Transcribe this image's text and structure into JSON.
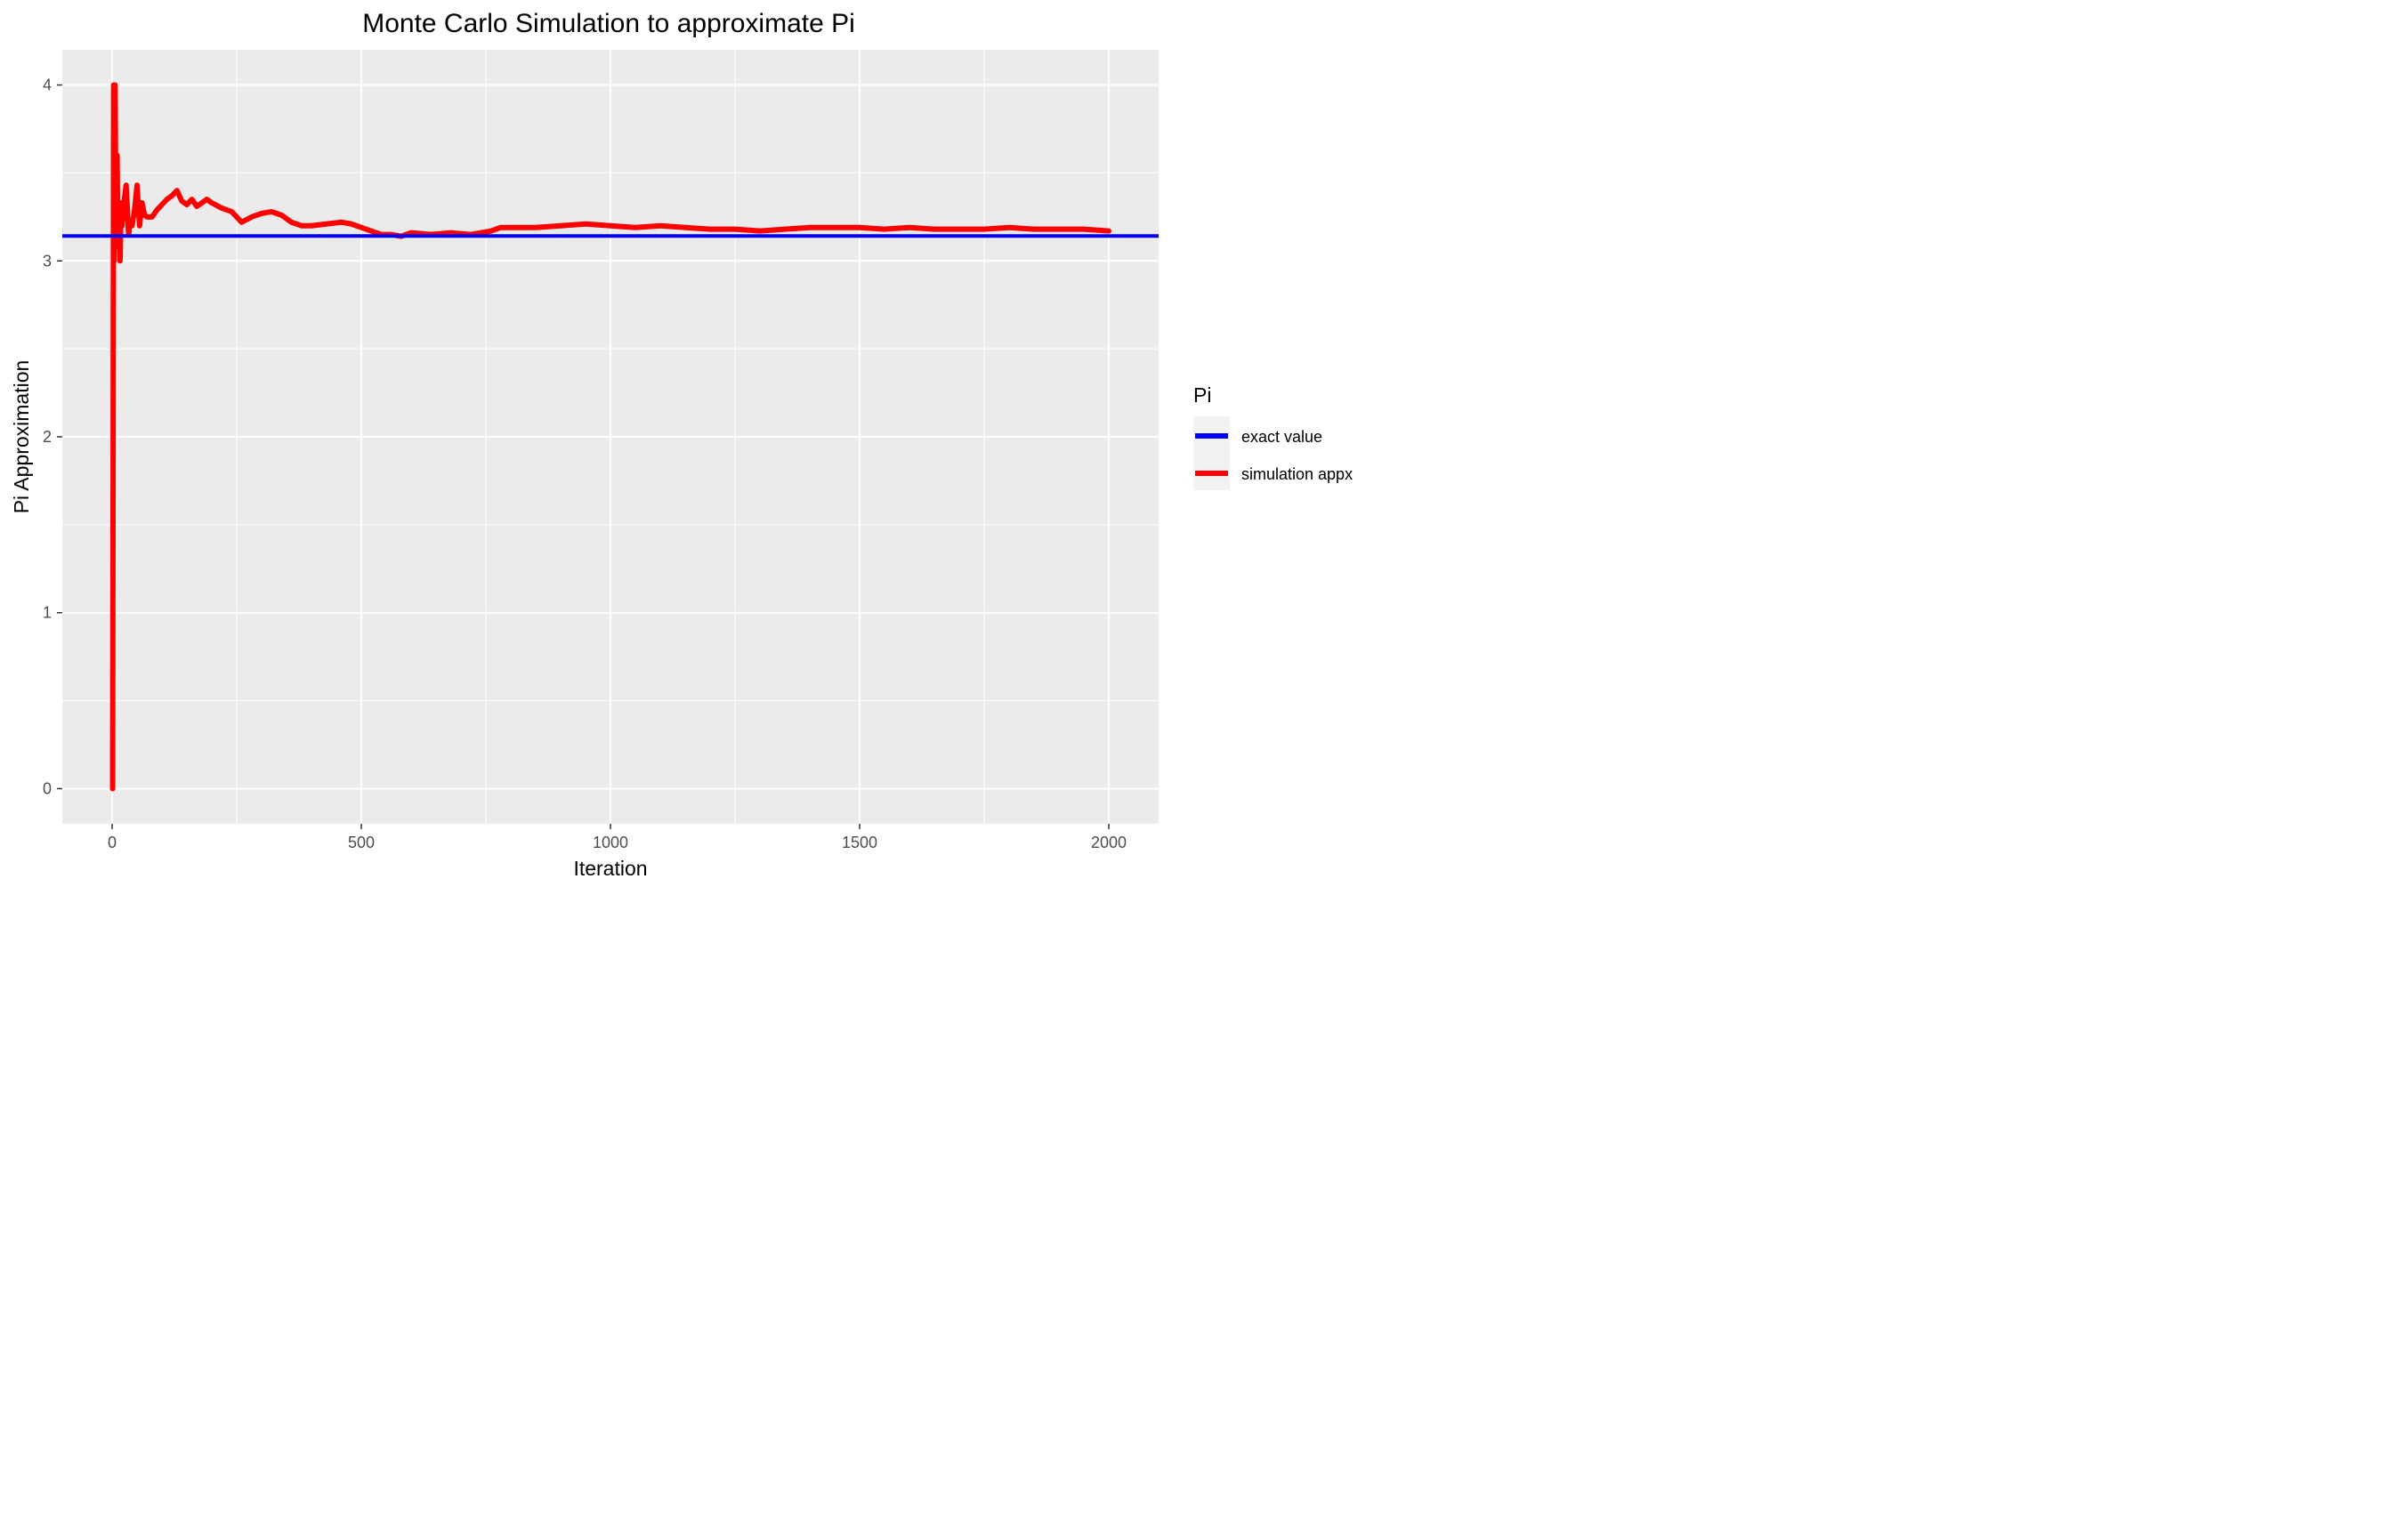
{
  "chart_data": {
    "type": "line",
    "title": "Monte Carlo Simulation to approximate Pi",
    "xlabel": "Iteration",
    "ylabel": "Pi Approximation",
    "xlim": [
      -100,
      2100
    ],
    "ylim": [
      -0.2,
      4.2
    ],
    "x_ticks": [
      0,
      500,
      1000,
      1500,
      2000
    ],
    "x_tick_labels": [
      "0",
      "500",
      "1000",
      "1500",
      "2000"
    ],
    "y_ticks": [
      0,
      1,
      2,
      3,
      4
    ],
    "y_tick_labels": [
      "0",
      "1",
      "2",
      "3",
      "4"
    ],
    "grid": true,
    "legend": {
      "title": "Pi",
      "position": "right"
    },
    "series": [
      {
        "name": "exact value",
        "color": "#0000FF",
        "kind": "hline",
        "y": 3.14159
      },
      {
        "name": "simulation appx",
        "color": "#FF0000",
        "kind": "line",
        "x": [
          1,
          2,
          3,
          4,
          5,
          6,
          7,
          8,
          9,
          10,
          11,
          12,
          13,
          14,
          15,
          16,
          18,
          20,
          22,
          25,
          28,
          30,
          33,
          36,
          40,
          45,
          50,
          55,
          60,
          65,
          70,
          80,
          90,
          100,
          110,
          120,
          130,
          140,
          150,
          160,
          170,
          180,
          190,
          200,
          220,
          240,
          260,
          280,
          300,
          320,
          340,
          360,
          380,
          400,
          430,
          460,
          480,
          500,
          520,
          540,
          560,
          580,
          600,
          640,
          680,
          720,
          760,
          780,
          800,
          850,
          900,
          950,
          1000,
          1050,
          1100,
          1150,
          1200,
          1250,
          1300,
          1350,
          1400,
          1450,
          1500,
          1550,
          1600,
          1650,
          1700,
          1750,
          1800,
          1850,
          1900,
          1950,
          2000
        ],
        "y": [
          0,
          2,
          4,
          3,
          3.2,
          4,
          3.43,
          3.5,
          3.56,
          3.6,
          3.27,
          3.33,
          3.08,
          3.14,
          3.2,
          3.0,
          3.33,
          3.2,
          3.27,
          3.36,
          3.43,
          3.33,
          3.15,
          3.22,
          3.2,
          3.29,
          3.43,
          3.2,
          3.33,
          3.26,
          3.25,
          3.25,
          3.29,
          3.32,
          3.35,
          3.37,
          3.4,
          3.34,
          3.32,
          3.35,
          3.31,
          3.33,
          3.35,
          3.33,
          3.3,
          3.28,
          3.22,
          3.25,
          3.27,
          3.28,
          3.26,
          3.22,
          3.2,
          3.2,
          3.21,
          3.22,
          3.21,
          3.19,
          3.17,
          3.15,
          3.15,
          3.14,
          3.16,
          3.15,
          3.16,
          3.15,
          3.17,
          3.19,
          3.19,
          3.19,
          3.2,
          3.21,
          3.2,
          3.19,
          3.2,
          3.19,
          3.18,
          3.18,
          3.17,
          3.18,
          3.19,
          3.19,
          3.19,
          3.18,
          3.19,
          3.18,
          3.18,
          3.18,
          3.19,
          3.18,
          3.18,
          3.18,
          3.17
        ]
      }
    ]
  }
}
